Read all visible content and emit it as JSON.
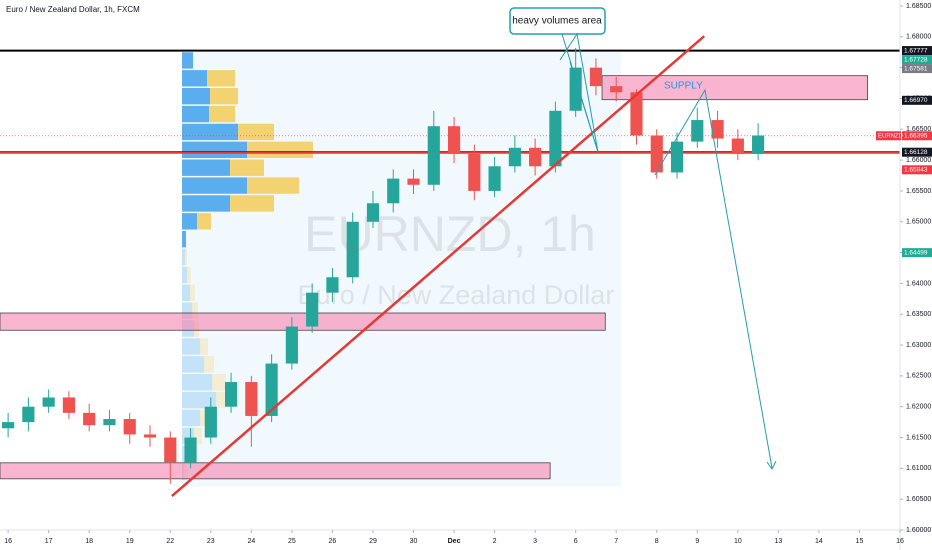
{
  "chart_data": {
    "type": "candlestick",
    "header": "Euro / New Zealand Dollar, 1h, FXCM",
    "watermark": "EURNZD, 1h",
    "watermark_subtitle": "Euro / New Zealand Dollar",
    "up_color": "#26a69a",
    "down_color": "#ef5350",
    "x": [
      0,
      0.5,
      1,
      1.5,
      2,
      2.5,
      3,
      3.5,
      4,
      4.5,
      5,
      5.5,
      6,
      6.5,
      7,
      7.5,
      8,
      8.5,
      9,
      9.5,
      10,
      10.5,
      11,
      11.5,
      12,
      12.5,
      13,
      13.5,
      14,
      14.5,
      15,
      15.5,
      16,
      16.5,
      17,
      17.5,
      18,
      18.5
    ],
    "open": [
      1.6165,
      1.6175,
      1.62,
      1.6215,
      1.619,
      1.617,
      1.618,
      1.6155,
      1.615,
      1.611,
      1.615,
      1.62,
      1.624,
      1.6185,
      1.627,
      1.633,
      1.6385,
      1.641,
      1.65,
      1.653,
      1.657,
      1.656,
      1.6655,
      1.661,
      1.655,
      1.659,
      1.662,
      1.659,
      1.668,
      1.675,
      1.672,
      1.671,
      1.664,
      1.658,
      1.663,
      1.6665,
      1.6635,
      1.661
    ],
    "high": [
      1.619,
      1.6215,
      1.6228,
      1.6225,
      1.6205,
      1.6195,
      1.619,
      1.617,
      1.616,
      1.6165,
      1.6215,
      1.6255,
      1.625,
      1.6285,
      1.6345,
      1.64,
      1.6425,
      1.6515,
      1.655,
      1.6585,
      1.6585,
      1.668,
      1.667,
      1.6625,
      1.6605,
      1.664,
      1.6635,
      1.6695,
      1.6782,
      1.6765,
      1.6735,
      1.6715,
      1.665,
      1.6645,
      1.6685,
      1.668,
      1.665,
      1.666
    ],
    "low": [
      1.615,
      1.616,
      1.619,
      1.618,
      1.616,
      1.616,
      1.614,
      1.6135,
      1.6075,
      1.61,
      1.614,
      1.619,
      1.6135,
      1.6175,
      1.626,
      1.632,
      1.637,
      1.64,
      1.649,
      1.6515,
      1.6545,
      1.655,
      1.6595,
      1.6535,
      1.654,
      1.658,
      1.6575,
      1.658,
      1.667,
      1.6705,
      1.6695,
      1.6625,
      1.657,
      1.657,
      1.662,
      1.662,
      1.66,
      1.66
    ],
    "close": [
      1.6175,
      1.62,
      1.6215,
      1.619,
      1.617,
      1.618,
      1.6155,
      1.615,
      1.611,
      1.615,
      1.62,
      1.624,
      1.6185,
      1.627,
      1.633,
      1.6385,
      1.641,
      1.65,
      1.653,
      1.657,
      1.656,
      1.6655,
      1.661,
      1.655,
      1.659,
      1.662,
      1.659,
      1.668,
      1.675,
      1.672,
      1.671,
      1.664,
      1.658,
      1.663,
      1.6665,
      1.6635,
      1.661,
      1.664
    ],
    "xlim": [
      -0.2,
      22
    ],
    "ylim": [
      1.6,
      1.685
    ],
    "xticks": [
      {
        "value": 0,
        "label": "16"
      },
      {
        "value": 1,
        "label": "17"
      },
      {
        "value": 2,
        "label": "18"
      },
      {
        "value": 3,
        "label": "19"
      },
      {
        "value": 4,
        "label": "22"
      },
      {
        "value": 5,
        "label": "23"
      },
      {
        "value": 6,
        "label": "24"
      },
      {
        "value": 7,
        "label": "25"
      },
      {
        "value": 8,
        "label": "26"
      },
      {
        "value": 9,
        "label": "29"
      },
      {
        "value": 10,
        "label": "30"
      },
      {
        "value": 11,
        "label": "Dec"
      },
      {
        "value": 12,
        "label": "2"
      },
      {
        "value": 13,
        "label": "3"
      },
      {
        "value": 14,
        "label": "6"
      },
      {
        "value": 15,
        "label": "7"
      },
      {
        "value": 16,
        "label": "8"
      },
      {
        "value": 17,
        "label": "9"
      },
      {
        "value": 18,
        "label": "10"
      },
      {
        "value": 19,
        "label": "13"
      },
      {
        "value": 20,
        "label": "14"
      },
      {
        "value": 21,
        "label": "15"
      },
      {
        "value": 22,
        "label": "16"
      }
    ],
    "yticks": [
      {
        "value": 1.6,
        "label": "1.60000"
      },
      {
        "value": 1.605,
        "label": "1.60500"
      },
      {
        "value": 1.61,
        "label": "1.61000"
      },
      {
        "value": 1.615,
        "label": "1.61500"
      },
      {
        "value": 1.62,
        "label": "1.62000"
      },
      {
        "value": 1.625,
        "label": "1.62500"
      },
      {
        "value": 1.63,
        "label": "1.63000"
      },
      {
        "value": 1.635,
        "label": "1.63500"
      },
      {
        "value": 1.64,
        "label": "1.64000"
      },
      {
        "value": 1.645,
        "label": "1.64500"
      },
      {
        "value": 1.65,
        "label": "1.65000"
      },
      {
        "value": 1.655,
        "label": "1.65500"
      },
      {
        "value": 1.66,
        "label": "1.66000"
      },
      {
        "value": 1.665,
        "label": "1.66500"
      },
      {
        "value": 1.67,
        "label": "1.67000"
      },
      {
        "value": 1.675,
        "label": "1.67500"
      },
      {
        "value": 1.68,
        "label": "1.68000"
      },
      {
        "value": 1.685,
        "label": "1.68500"
      }
    ],
    "price_labels": [
      {
        "value": 1.67777,
        "label": "1.67777",
        "color": "#131722"
      },
      {
        "value": 1.67728,
        "label": "1.67728",
        "color": "#22ab94"
      },
      {
        "value": 1.67581,
        "label": "1.67581",
        "color": "#787b86"
      },
      {
        "value": 1.6697,
        "label": "1.66970",
        "color": "#131722"
      },
      {
        "value": 1.66395,
        "label": "1.66395",
        "color": "#f23645",
        "symbol": "EURNZD"
      },
      {
        "value": 1.66128,
        "label": "1.66128",
        "color": "#131722"
      },
      {
        "value": 1.65843,
        "label": "1.65843",
        "color": "#f23645"
      },
      {
        "value": 1.64499,
        "label": "1.64499",
        "color": "#22ab94"
      }
    ],
    "horizontal_lines": [
      {
        "value": 1.67777,
        "color": "#000000"
      },
      {
        "value": 1.66128,
        "color": "#000000"
      },
      {
        "value": 1.6612,
        "color": "#e53935"
      }
    ],
    "current_price_line": 1.66395,
    "zones": [
      {
        "x": [
          14.65,
          21.2
        ],
        "y": [
          1.6698,
          1.6737
        ],
        "label": "SUPPLY"
      },
      {
        "x": [
          -0.2,
          14.73
        ],
        "y": [
          1.6324,
          1.6352
        ]
      },
      {
        "x": [
          -0.2,
          13.37
        ],
        "y": [
          1.6083,
          1.6109
        ]
      }
    ],
    "trendline": {
      "x": [
        4.04,
        17.17
      ],
      "y": [
        1.6055,
        1.6801
      ],
      "color": "#e53935"
    },
    "range_highlight": {
      "x": [
        4.29,
        15.12
      ],
      "y": [
        1.607,
        1.6775
      ]
    },
    "annotation": "heavy volumes area",
    "volume_profile": {
      "row_prices": [
        1.6775,
        1.6746,
        1.6717,
        1.6688,
        1.6659,
        1.663,
        1.6601,
        1.6572,
        1.6543,
        1.6514,
        1.6485,
        1.6456,
        1.6427,
        1.6398,
        1.6369,
        1.634,
        1.6311,
        1.6282,
        1.6253,
        1.6224,
        1.6195,
        1.6166,
        1.6137,
        1.6108
      ],
      "up": [
        11,
        25,
        28,
        27,
        56,
        65,
        48,
        65,
        48,
        15,
        4,
        3,
        5,
        8,
        10,
        12,
        18,
        22,
        30,
        34,
        18,
        12,
        6,
        2
      ],
      "down": [
        0,
        28,
        28,
        26,
        36,
        66,
        34,
        52,
        44,
        14,
        0,
        2,
        4,
        5,
        6,
        5,
        8,
        10,
        14,
        12,
        10,
        8,
        6,
        4
      ],
      "value_area": [
        1.648,
        1.678
      ]
    }
  }
}
